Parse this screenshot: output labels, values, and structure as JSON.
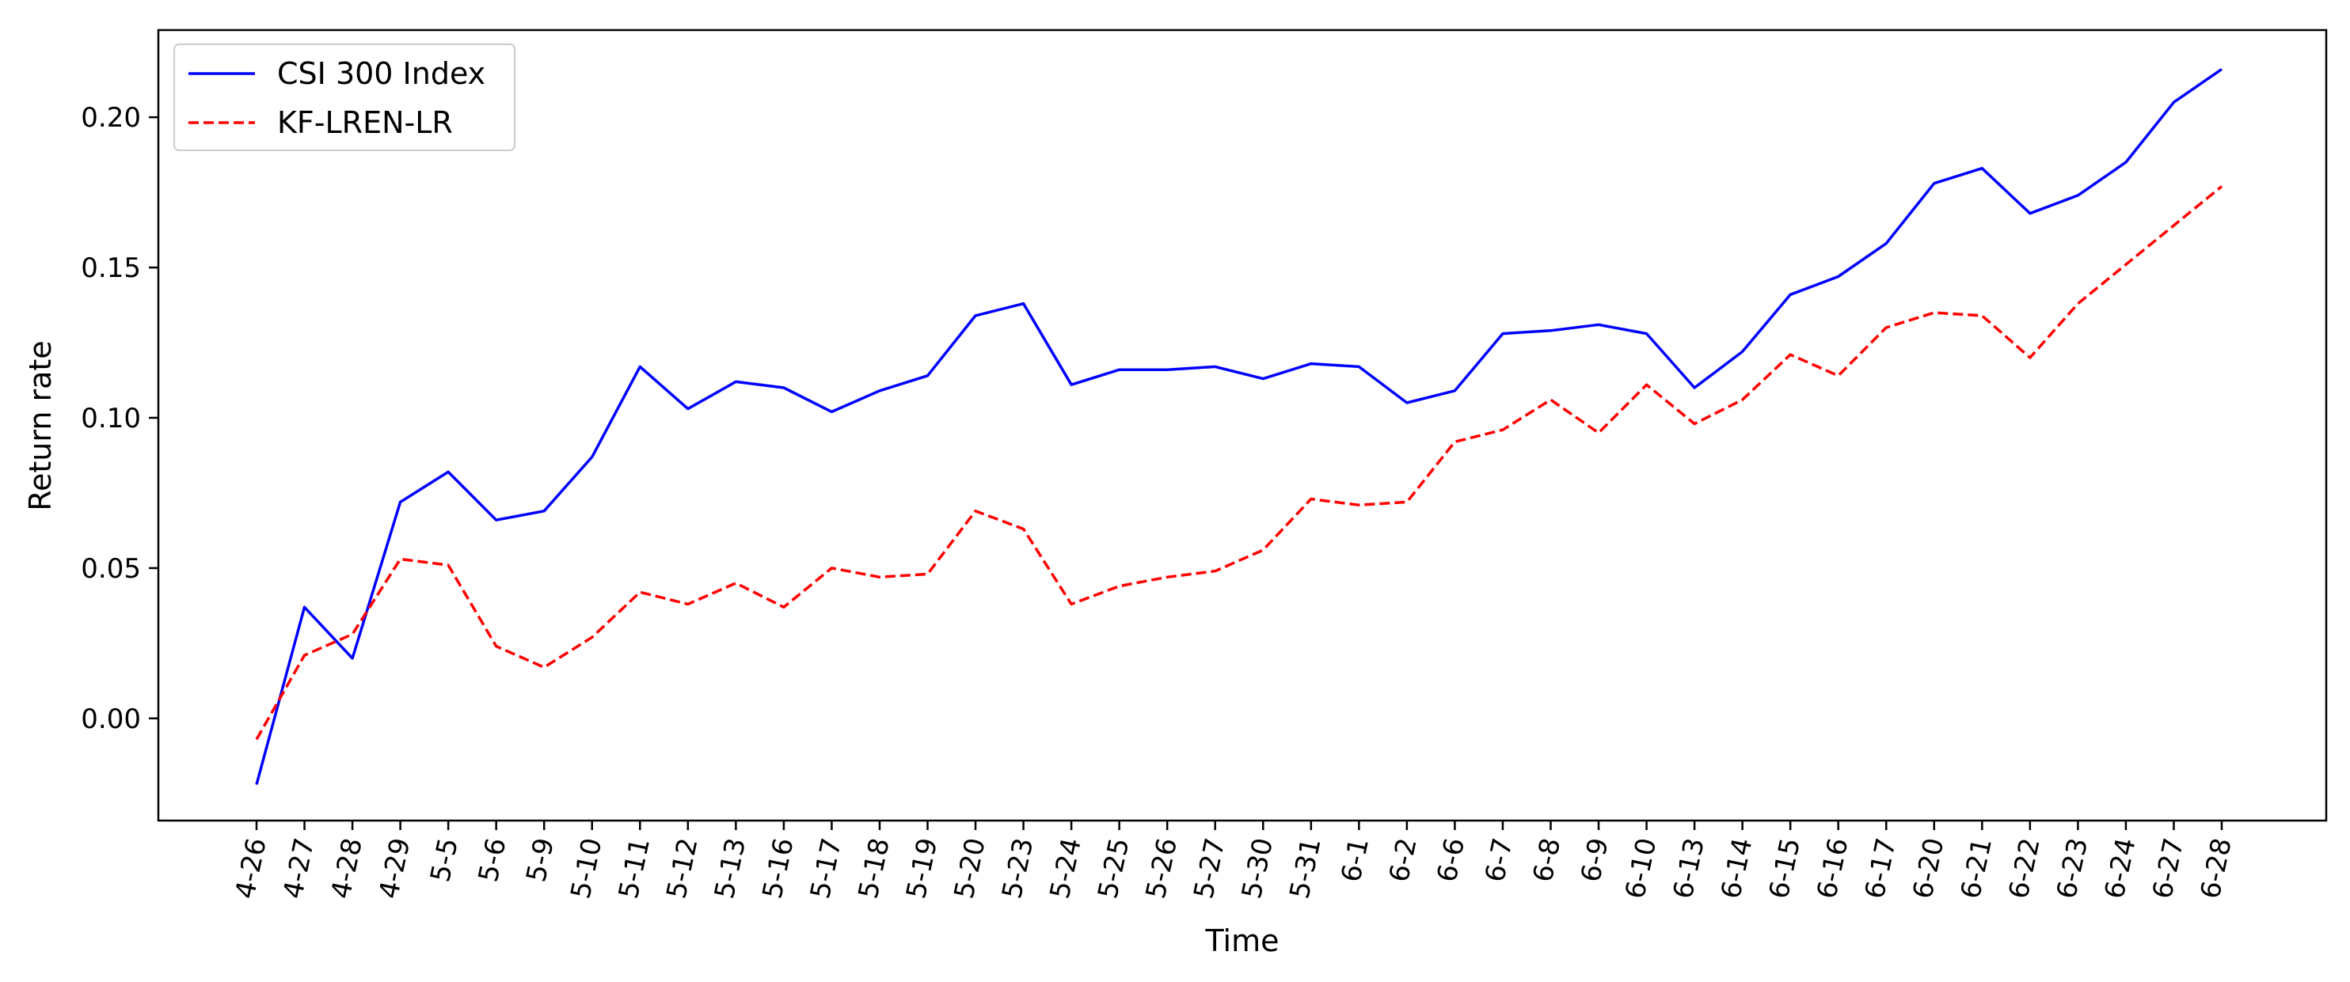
{
  "chart_data": {
    "type": "line",
    "title": "",
    "xlabel": "Time",
    "ylabel": "Return rate",
    "categories": [
      "4-26",
      "4-27",
      "4-28",
      "4-29",
      "5-5",
      "5-6",
      "5-9",
      "5-10",
      "5-11",
      "5-12",
      "5-13",
      "5-16",
      "5-17",
      "5-18",
      "5-19",
      "5-20",
      "5-23",
      "5-24",
      "5-25",
      "5-26",
      "5-27",
      "5-30",
      "5-31",
      "6-1",
      "6-2",
      "6-6",
      "6-7",
      "6-8",
      "6-9",
      "6-10",
      "6-13",
      "6-14",
      "6-15",
      "6-16",
      "6-17",
      "6-20",
      "6-21",
      "6-22",
      "6-23",
      "6-24",
      "6-27",
      "6-28"
    ],
    "ylim": [
      -0.034,
      0.229
    ],
    "yticks": [
      0.0,
      0.05,
      0.1,
      0.15,
      0.2
    ],
    "ytick_labels": [
      "0.00",
      "0.05",
      "0.10",
      "0.15",
      "0.20"
    ],
    "grid": false,
    "legend": {
      "placement": "top-left"
    },
    "series": [
      {
        "name": "CSI 300 Index",
        "color": "#0000ff",
        "style": "solid",
        "values": [
          -0.022,
          0.037,
          0.02,
          0.072,
          0.082,
          0.066,
          0.069,
          0.087,
          0.117,
          0.103,
          0.112,
          0.11,
          0.102,
          0.109,
          0.114,
          0.134,
          0.138,
          0.111,
          0.116,
          0.116,
          0.117,
          0.113,
          0.118,
          0.117,
          0.105,
          0.109,
          0.128,
          0.129,
          0.131,
          0.128,
          0.11,
          0.122,
          0.141,
          0.147,
          0.158,
          0.178,
          0.183,
          0.168,
          0.174,
          0.185,
          0.205,
          0.216
        ]
      },
      {
        "name": "KF-LREN-LR",
        "color": "#ff0000",
        "style": "dashed",
        "values": [
          -0.007,
          0.021,
          0.028,
          0.053,
          0.051,
          0.024,
          0.017,
          0.027,
          0.042,
          0.038,
          0.045,
          0.037,
          0.05,
          0.047,
          0.048,
          0.069,
          0.063,
          0.038,
          0.044,
          0.047,
          0.049,
          0.056,
          0.073,
          0.071,
          0.072,
          0.092,
          0.096,
          0.106,
          0.095,
          0.111,
          0.098,
          0.106,
          0.121,
          0.114,
          0.13,
          0.135,
          0.134,
          0.12,
          0.138,
          0.151,
          0.164,
          0.177
        ]
      }
    ]
  }
}
